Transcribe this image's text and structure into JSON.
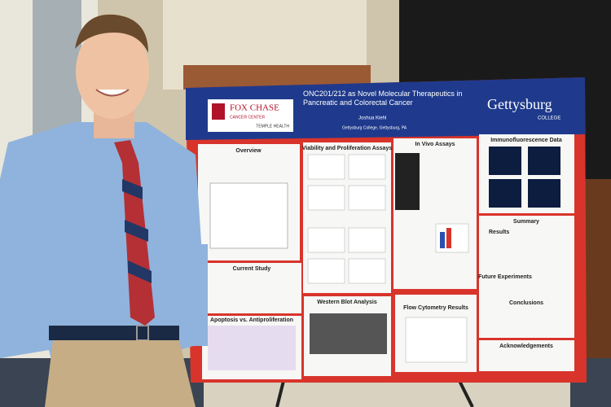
{
  "poster": {
    "logo_left": {
      "name": "FOX CHASE",
      "subtitle": "CANCER CENTER",
      "tagline": "TEMPLE HEALTH"
    },
    "title": "ONC201/212 as Novel Molecular Therapeutics in Pancreatic and Colorectal Cancer",
    "author": "Joshua Kiehl",
    "affiliation": "Gettysburg College, Gettysburg, PA",
    "logo_right": {
      "name": "Gettysburg",
      "subtitle": "COLLEGE"
    },
    "sections": [
      "Overview",
      "Current Study",
      "Apoptosis vs. Antiproliferation",
      "Viability and Proliferation Assays",
      "Western Blot Analysis",
      "In Vivo Assays",
      "Flow Cytometry Results",
      "Immunofluorescence Data",
      "Summary",
      "Results",
      "Future Experiments",
      "Conclusions",
      "Acknowledgements"
    ]
  }
}
